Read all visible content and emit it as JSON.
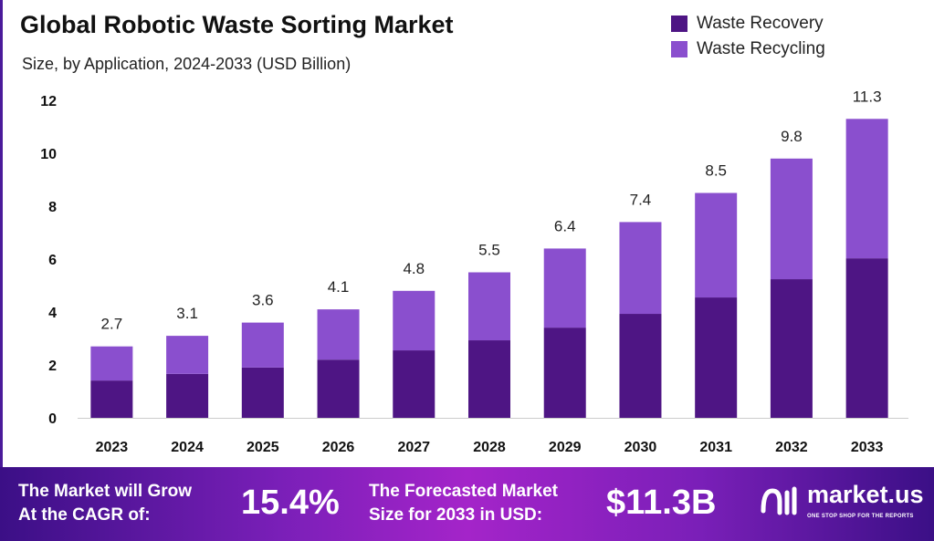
{
  "chart_data": {
    "type": "bar",
    "stacked": true,
    "title": "Global Robotic Waste Sorting Market",
    "subtitle": "Size, by Application, 2024-2033 (USD Billion)",
    "categories": [
      "2023",
      "2024",
      "2025",
      "2026",
      "2027",
      "2028",
      "2029",
      "2030",
      "2031",
      "2032",
      "2033"
    ],
    "series": [
      {
        "name": "Waste Recovery",
        "color": "#4e1584",
        "values": [
          1.41,
          1.66,
          1.9,
          2.2,
          2.55,
          2.93,
          3.41,
          3.93,
          4.55,
          5.24,
          6.03
        ]
      },
      {
        "name": "Waste Recycling",
        "color": "#8a4fce",
        "values": [
          1.29,
          1.44,
          1.7,
          1.9,
          2.25,
          2.57,
          2.99,
          3.47,
          3.95,
          4.56,
          5.27
        ]
      }
    ],
    "totals": [
      "2.7",
      "3.1",
      "3.6",
      "4.1",
      "4.8",
      "5.5",
      "6.4",
      "7.4",
      "8.5",
      "9.8",
      "11.3"
    ],
    "yticks": [
      "0",
      "2",
      "4",
      "6",
      "8",
      "10",
      "12"
    ],
    "ylim": [
      0,
      12
    ],
    "xlabel": "",
    "ylabel": "",
    "grid": false,
    "legend": "top-right"
  },
  "banner": {
    "cagr_label_1": "The Market will Grow",
    "cagr_label_2": "At the CAGR of:",
    "cagr_value": "15.4%",
    "forecast_label_1": "The Forecasted Market",
    "forecast_label_2": "Size for 2033 in USD:",
    "forecast_value": "$11.3B",
    "logo_name": "market.us",
    "logo_tagline": "ONE STOP SHOP FOR THE REPORTS"
  }
}
